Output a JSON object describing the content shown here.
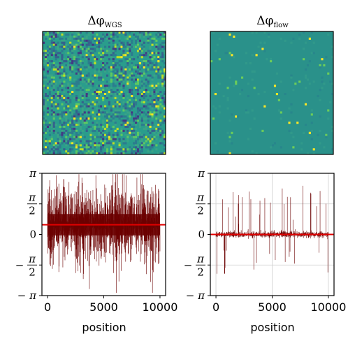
{
  "figure": {
    "panels": [
      {
        "id": "wgs-map",
        "title_symbol": "Δφ",
        "title_subscript": "WGS",
        "image": {
          "grid": 60,
          "base_color": "#2a9d8c",
          "noise_level": 0.9
        }
      },
      {
        "id": "flow-map",
        "title_symbol": "Δφ",
        "title_subscript": "flow",
        "image": {
          "grid": 60,
          "base_color": "#2a918a",
          "noise_level": 0.08
        }
      }
    ],
    "y_tick_labels": [
      {
        "value": 3.14159,
        "text": "π"
      },
      {
        "value": 1.5708,
        "num": "π",
        "den": "2"
      },
      {
        "value": 0,
        "text": "0"
      },
      {
        "value": -1.5708,
        "sign": "−",
        "num": "π",
        "den": "2"
      },
      {
        "value": -3.14159,
        "text": "− π"
      }
    ],
    "x_tick_labels": [
      "0",
      "5000",
      "10000"
    ],
    "xlabel": "position",
    "colors": {
      "trace": "#6b0000",
      "mean_line": "#e00000",
      "grid": "#cfcfcf"
    }
  },
  "chart_data": [
    {
      "type": "line",
      "name": "phase-residual-wgs",
      "xlabel": "position",
      "ylabel": "",
      "xlim": [
        -500,
        10500
      ],
      "ylim": [
        -3.14159,
        3.14159
      ],
      "x_ticks": [
        0,
        5000,
        10000
      ],
      "y_ticks": [
        3.14159,
        1.5708,
        0,
        -1.5708,
        -3.14159
      ],
      "grid": false,
      "series": [
        {
          "points": 10000,
          "center": 0.5,
          "spread": 1.3,
          "clip": [
            -3.0,
            3.1
          ]
        }
      ],
      "mean_line": 0.5
    },
    {
      "type": "line",
      "name": "phase-residual-flow",
      "xlabel": "position",
      "ylabel": "",
      "xlim": [
        -500,
        10500
      ],
      "ylim": [
        -3.14159,
        3.14159
      ],
      "x_ticks": [
        0,
        5000,
        10000
      ],
      "y_ticks": [
        3.14159,
        1.5708,
        0,
        -1.5708,
        -3.14159
      ],
      "grid": true,
      "series": [
        {
          "points": 10000,
          "center": 0.0,
          "spread": 0.08,
          "spike_max": 2.6
        }
      ],
      "mean_line": 0.0
    }
  ]
}
